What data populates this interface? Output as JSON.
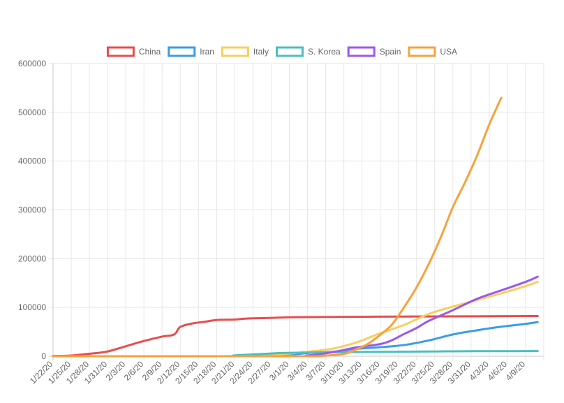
{
  "chart_data": {
    "type": "line",
    "title": "",
    "xlabel": "",
    "ylabel": "",
    "ylim": [
      0,
      600000
    ],
    "y_ticks": [
      "0",
      "100000",
      "200000",
      "300000",
      "400000",
      "500000",
      "600000"
    ],
    "x_tick_labels": [
      "1/22/20",
      "1/25/20",
      "1/28/20",
      "1/31/20",
      "2/3/20",
      "2/6/20",
      "2/9/20",
      "2/12/20",
      "2/15/20",
      "2/18/20",
      "2/21/20",
      "2/24/20",
      "2/27/20",
      "3/1/20",
      "3/4/20",
      "3/7/20",
      "3/10/20",
      "3/13/20",
      "3/16/20",
      "3/19/20",
      "3/22/20",
      "3/25/20",
      "3/28/20",
      "3/31/20",
      "4/3/20",
      "4/6/20",
      "4/9/20"
    ],
    "x_day_count": 81,
    "legend_position": "top",
    "grid": true,
    "series": [
      {
        "name": "China",
        "color": "#e84d4d",
        "points": [
          [
            0,
            550
          ],
          [
            3,
            1500
          ],
          [
            6,
            5000
          ],
          [
            9,
            9700
          ],
          [
            12,
            20400
          ],
          [
            15,
            31200
          ],
          [
            18,
            40200
          ],
          [
            20,
            44700
          ],
          [
            21,
            60000
          ],
          [
            23,
            67100
          ],
          [
            25,
            70500
          ],
          [
            27,
            74300
          ],
          [
            30,
            75200
          ],
          [
            32,
            77200
          ],
          [
            36,
            78500
          ],
          [
            40,
            80100
          ],
          [
            50,
            80800
          ],
          [
            60,
            81400
          ],
          [
            80,
            82300
          ]
        ]
      },
      {
        "name": "Iran",
        "color": "#3a9de6",
        "points": [
          [
            0,
            0
          ],
          [
            28,
            0
          ],
          [
            32,
            200
          ],
          [
            38,
            2300
          ],
          [
            42,
            6500
          ],
          [
            46,
            9000
          ],
          [
            50,
            14990
          ],
          [
            54,
            18400
          ],
          [
            58,
            23000
          ],
          [
            62,
            32300
          ],
          [
            66,
            44600
          ],
          [
            70,
            53200
          ],
          [
            74,
            60500
          ],
          [
            78,
            66200
          ],
          [
            80,
            70000
          ]
        ]
      },
      {
        "name": "Italy",
        "color": "#f7cf5e",
        "points": [
          [
            0,
            0
          ],
          [
            30,
            0
          ],
          [
            33,
            650
          ],
          [
            38,
            4600
          ],
          [
            42,
            9200
          ],
          [
            46,
            15100
          ],
          [
            50,
            27900
          ],
          [
            54,
            47000
          ],
          [
            58,
            64400
          ],
          [
            62,
            86500
          ],
          [
            66,
            101700
          ],
          [
            70,
            115200
          ],
          [
            74,
            128900
          ],
          [
            78,
            143600
          ],
          [
            80,
            152300
          ]
        ]
      },
      {
        "name": "S. Korea",
        "color": "#4bbfbf",
        "points": [
          [
            0,
            0
          ],
          [
            27,
            0
          ],
          [
            30,
            1800
          ],
          [
            34,
            4300
          ],
          [
            38,
            6600
          ],
          [
            42,
            7600
          ],
          [
            46,
            8300
          ],
          [
            50,
            8600
          ],
          [
            54,
            8900
          ],
          [
            58,
            9300
          ],
          [
            62,
            9700
          ],
          [
            66,
            10100
          ],
          [
            70,
            10300
          ],
          [
            74,
            10400
          ],
          [
            80,
            10500
          ]
        ]
      },
      {
        "name": "Spain",
        "color": "#9b59ea",
        "points": [
          [
            0,
            0
          ],
          [
            38,
            0
          ],
          [
            42,
            1600
          ],
          [
            46,
            7800
          ],
          [
            50,
            17900
          ],
          [
            54,
            24900
          ],
          [
            56,
            33100
          ],
          [
            58,
            45900
          ],
          [
            60,
            57800
          ],
          [
            62,
            72300
          ],
          [
            66,
            94400
          ],
          [
            70,
            117700
          ],
          [
            74,
            135000
          ],
          [
            78,
            152400
          ],
          [
            80,
            163000
          ]
        ]
      },
      {
        "name": "USA",
        "color": "#f7a23b",
        "points": [
          [
            0,
            0
          ],
          [
            40,
            0
          ],
          [
            44,
            600
          ],
          [
            48,
            4700
          ],
          [
            50,
            13700
          ],
          [
            52,
            25500
          ],
          [
            54,
            43800
          ],
          [
            56,
            65800
          ],
          [
            58,
            101600
          ],
          [
            60,
            141100
          ],
          [
            62,
            188600
          ],
          [
            64,
            243600
          ],
          [
            66,
            305800
          ],
          [
            68,
            356200
          ],
          [
            70,
            411600
          ],
          [
            72,
            475000
          ],
          [
            74,
            530000
          ]
        ]
      }
    ]
  }
}
